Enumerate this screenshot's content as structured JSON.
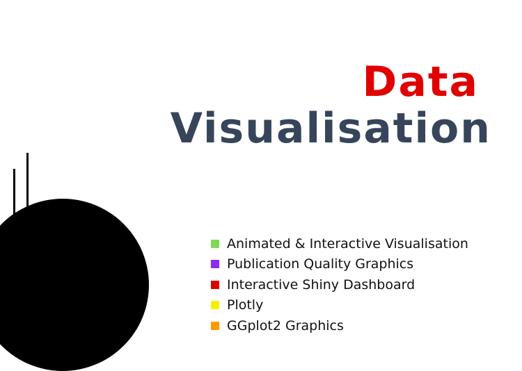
{
  "title": {
    "word1": "Data",
    "word2": "Visualisation",
    "word1_color": "#e00000",
    "word2_color": "#36455a"
  },
  "features": [
    {
      "label": "Animated & Interactive Visualisation",
      "color": "#7ed957",
      "icon": "green-square-icon"
    },
    {
      "label": "Publication Quality Graphics",
      "color": "#8c2cf5",
      "icon": "purple-square-icon"
    },
    {
      "label": "Interactive Shiny Dashboard",
      "color": "#e00000",
      "icon": "red-square-icon"
    },
    {
      "label": "Plotly",
      "color": "#f5f000",
      "icon": "yellow-square-icon"
    },
    {
      "label": "GGplot2 Graphics",
      "color": "#ff9a00",
      "icon": "orange-square-icon"
    }
  ],
  "decoration": {
    "circle_color": "#000000",
    "line_color": "#000000"
  }
}
